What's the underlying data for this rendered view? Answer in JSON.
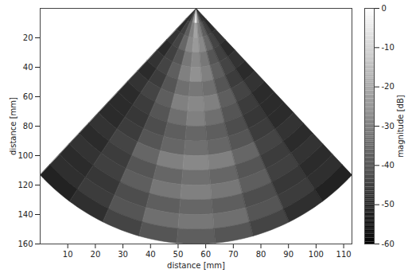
{
  "chart_data": {
    "type": "heatmap",
    "xlabel": "distance [mm]",
    "ylabel": "distance [mm]",
    "xlim": [
      0,
      113
    ],
    "xticks": [
      10,
      20,
      30,
      40,
      50,
      60,
      70,
      80,
      90,
      100,
      110
    ],
    "ylim": [
      0,
      160
    ],
    "yticks": [
      20,
      40,
      60,
      80,
      100,
      120,
      140,
      160
    ],
    "color": "gray",
    "radii": [
      0,
      10,
      20,
      30,
      40,
      50,
      60,
      70,
      80,
      90,
      100,
      110,
      120,
      130,
      140,
      150,
      160
    ],
    "angles": [
      -45,
      -35,
      -25,
      -15,
      -5,
      5,
      15,
      25,
      35,
      45
    ],
    "cells": [
      [
        -50,
        -48,
        -40,
        -25,
        -5,
        -25,
        -40,
        -48,
        -50
      ],
      [
        -50,
        -45,
        -38,
        -30,
        -22,
        -30,
        -38,
        -45,
        -50
      ],
      [
        -48,
        -44,
        -36,
        -28,
        -24,
        -28,
        -36,
        -44,
        -48
      ],
      [
        -50,
        -45,
        -40,
        -32,
        -28,
        -32,
        -40,
        -45,
        -50
      ],
      [
        -48,
        -44,
        -38,
        -30,
        -26,
        -30,
        -38,
        -44,
        -48
      ],
      [
        -50,
        -46,
        -40,
        -34,
        -32,
        -34,
        -40,
        -46,
        -50
      ],
      [
        -48,
        -44,
        -38,
        -30,
        -28,
        -30,
        -38,
        -44,
        -48
      ],
      [
        -50,
        -46,
        -40,
        -34,
        -30,
        -34,
        -40,
        -46,
        -50
      ],
      [
        -50,
        -47,
        -42,
        -38,
        -36,
        -38,
        -42,
        -47,
        -50
      ],
      [
        -50,
        -46,
        -40,
        -36,
        -34,
        -36,
        -40,
        -46,
        -50
      ],
      [
        -48,
        -44,
        -36,
        -30,
        -28,
        -30,
        -36,
        -44,
        -48
      ],
      [
        -50,
        -46,
        -40,
        -36,
        -34,
        -36,
        -40,
        -46,
        -50
      ],
      [
        -48,
        -45,
        -38,
        -32,
        -30,
        -32,
        -38,
        -45,
        -48
      ],
      [
        -50,
        -47,
        -42,
        -38,
        -36,
        -38,
        -42,
        -47,
        -50
      ],
      [
        -49,
        -46,
        -40,
        -34,
        -32,
        -34,
        -40,
        -46,
        -49
      ],
      [
        -52,
        -49,
        -44,
        -40,
        -38,
        -40,
        -44,
        -49,
        -52
      ]
    ],
    "colorbar": {
      "label": "magnitude [dB]",
      "range": [
        -60,
        0
      ],
      "ticks": [
        0,
        -10,
        -20,
        -30,
        -40,
        -50,
        -60
      ]
    }
  }
}
